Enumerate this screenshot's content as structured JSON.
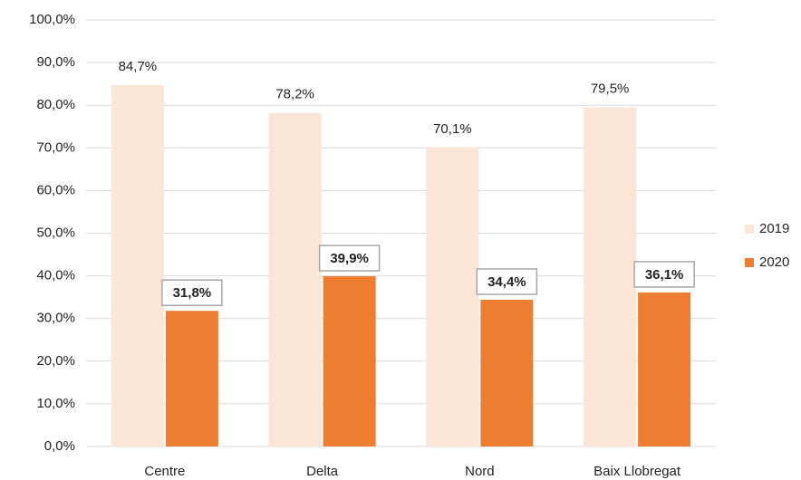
{
  "chart_data": {
    "type": "bar",
    "categories": [
      "Centre",
      "Delta",
      "Nord",
      "Baix Llobregat"
    ],
    "series": [
      {
        "name": "2019",
        "color": "#fbe5d6",
        "values": [
          84.7,
          78.2,
          70.1,
          79.5
        ],
        "value_labels": [
          "84,7%",
          "78,2%",
          "70,1%",
          "79,5%"
        ]
      },
      {
        "name": "2020",
        "color": "#ed7d31",
        "values": [
          31.8,
          39.9,
          34.4,
          36.1
        ],
        "value_labels": [
          "31,8%",
          "39,9%",
          "34,4%",
          "36,1%"
        ]
      }
    ],
    "ylim": [
      0,
      100
    ],
    "yticks": [
      {
        "value": 0,
        "label": "0,0%"
      },
      {
        "value": 10,
        "label": "10,0%"
      },
      {
        "value": 20,
        "label": "20,0%"
      },
      {
        "value": 30,
        "label": "30,0%"
      },
      {
        "value": 40,
        "label": "40,0%"
      },
      {
        "value": 50,
        "label": "50,0%"
      },
      {
        "value": 60,
        "label": "60,0%"
      },
      {
        "value": 70,
        "label": "70,0%"
      },
      {
        "value": 80,
        "label": "80,0%"
      },
      {
        "value": 90,
        "label": "90,0%"
      },
      {
        "value": 100,
        "label": "100,0%"
      }
    ],
    "grid": true,
    "legend": "right"
  }
}
